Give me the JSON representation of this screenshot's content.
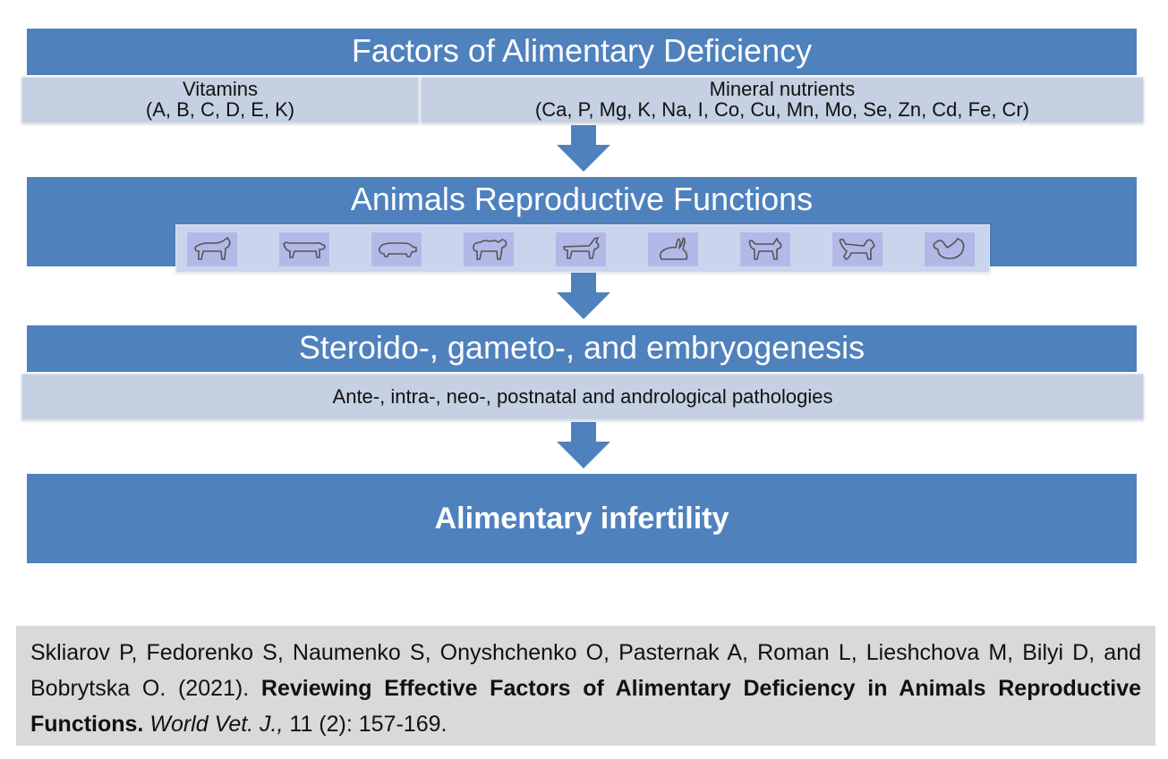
{
  "band1": {
    "title": "Factors of Alimentary Deficiency",
    "vitamins_title": "Vitamins",
    "vitamins_list": "(A, B, C, D, E, K)",
    "minerals_title": "Mineral nutrients",
    "minerals_list": "(Ca, P, Mg, K, Na, I, Co, Cu, Mn, Mo, Se, Zn, Cd, Fe, Cr)"
  },
  "band2": {
    "title": "Animals Reproductive Functions",
    "animals": [
      "cattle-icon",
      "cow-icon",
      "pig-icon",
      "sheep-icon",
      "goat-icon",
      "rabbit-icon",
      "cat-icon",
      "dog-icon",
      "chicken-icon"
    ]
  },
  "band3": {
    "title": "Steroido-, gameto-, and embryogenesis",
    "subtitle": "Ante-, intra-, neo-, postnatal and andrological pathologies"
  },
  "band4": {
    "title": "Alimentary infertility"
  },
  "citation": {
    "authors": "Skliarov P, Fedorenko S, Naumenko S, Onyshchenko O, Pasternak A, Roman L, Lieshchova M, Bilyi D, and Bobrytska O. (2021).",
    "title": "Reviewing Effective Factors of Alimentary Deficiency in Animals Reproductive Functions.",
    "journal": "World Vet. J.,",
    "volume": "11 (2): 157-169."
  },
  "colors": {
    "band": "#4f81bd",
    "subbar": "#c5d0e2",
    "tile": "#b2b9e8",
    "citation_bg": "#d9d9d9"
  }
}
